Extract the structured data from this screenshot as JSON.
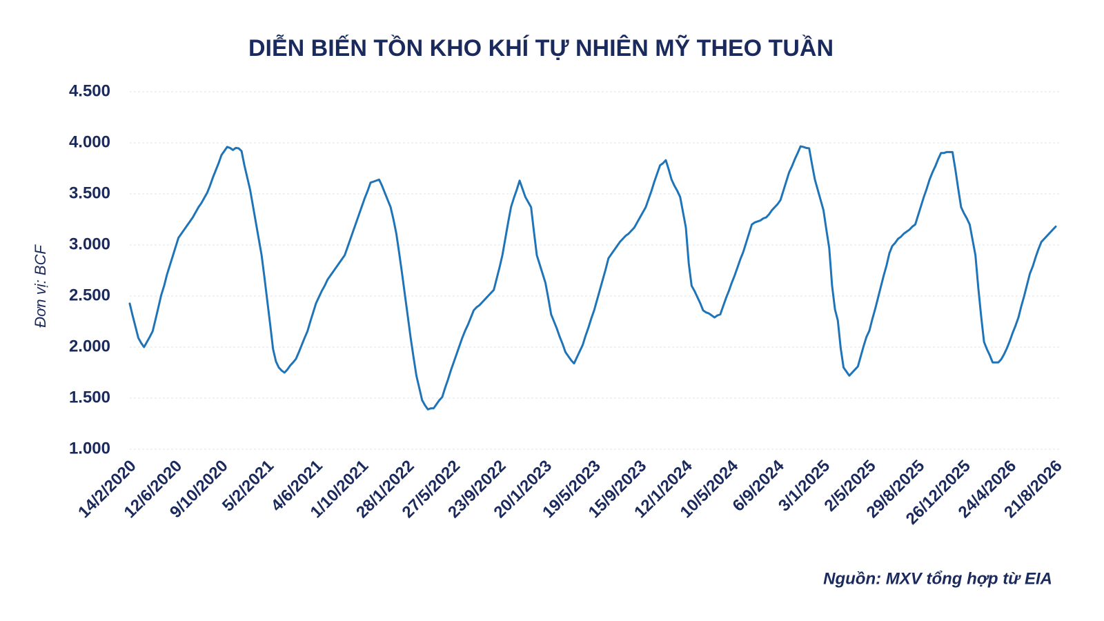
{
  "chart_data": {
    "type": "line",
    "title": "DIỄN BIẾN TỒN KHO KHÍ TỰ NHIÊN MỸ THEO TUẦN",
    "y_label": "Đơn vị: BCF",
    "source": "Nguồn: MXV tổng hợp từ EIA",
    "color": "#1f74b8",
    "grid": true,
    "ylim": [
      1000,
      4500
    ],
    "yticks": [
      {
        "value": 1000,
        "label": "1.000"
      },
      {
        "value": 1500,
        "label": "1.500"
      },
      {
        "value": 2000,
        "label": "2.000"
      },
      {
        "value": 2500,
        "label": "2.500"
      },
      {
        "value": 3000,
        "label": "3.000"
      },
      {
        "value": 3500,
        "label": "3.500"
      },
      {
        "value": 4000,
        "label": "4.000"
      },
      {
        "value": 4500,
        "label": "4.500"
      }
    ],
    "categories": [
      "14/2/2020",
      null,
      null,
      null,
      null,
      null,
      null,
      null,
      null,
      null,
      null,
      null,
      null,
      null,
      null,
      null,
      "12/6/2020",
      null,
      null,
      null,
      null,
      null,
      null,
      null,
      null,
      null,
      null,
      null,
      null,
      null,
      null,
      null,
      "9/10/2020",
      null,
      null,
      null,
      null,
      null,
      null,
      null,
      null,
      null,
      null,
      null,
      null,
      null,
      null,
      null,
      "5/2/2021",
      null,
      null,
      null,
      null,
      null,
      null,
      null,
      null,
      null,
      null,
      null,
      null,
      null,
      null,
      null,
      null,
      "4/6/2021",
      null,
      null,
      null,
      null,
      null,
      null,
      null,
      null,
      null,
      null,
      null,
      null,
      null,
      null,
      null,
      "1/10/2021",
      null,
      null,
      null,
      null,
      null,
      null,
      null,
      null,
      null,
      null,
      null,
      null,
      null,
      null,
      null,
      "28/1/2022",
      null,
      null,
      null,
      null,
      null,
      null,
      null,
      null,
      null,
      null,
      null,
      null,
      null,
      null,
      null,
      "27/5/2022",
      null,
      null,
      null,
      null,
      null,
      null,
      null,
      null,
      null,
      null,
      null,
      null,
      null,
      null,
      null,
      "23/9/2022",
      null,
      null,
      null,
      null,
      null,
      null,
      null,
      null,
      null,
      null,
      null,
      null,
      null,
      null,
      null,
      "20/1/2023",
      null,
      null,
      null,
      null,
      null,
      null,
      null,
      null,
      null,
      null,
      null,
      null,
      null,
      null,
      null,
      null,
      "19/5/2023",
      null,
      null,
      null,
      null,
      null,
      null,
      null,
      null,
      null,
      null,
      null,
      null,
      null,
      null,
      null,
      "15/9/2023",
      null,
      null,
      null,
      null,
      null,
      null,
      null,
      null,
      null,
      null,
      null,
      null,
      null,
      null,
      null,
      "12/1/2024",
      null,
      null,
      null,
      null,
      null,
      null,
      null,
      null,
      null,
      null,
      null,
      null,
      null,
      null,
      null,
      "10/5/2024",
      null,
      null,
      null,
      null,
      null,
      null,
      null,
      null,
      null,
      null,
      null,
      null,
      null,
      null,
      null,
      "6/9/2024",
      null,
      null,
      null,
      null,
      null,
      null,
      null,
      null,
      null,
      null,
      null,
      null,
      null,
      null,
      null,
      "3/1/2025",
      null,
      null,
      null,
      null,
      null,
      null,
      null,
      null,
      null,
      null,
      null,
      null,
      null,
      null,
      null,
      "2/5/2025",
      null,
      null,
      null,
      null,
      null,
      null,
      null,
      null,
      null,
      null,
      null,
      null,
      null,
      null,
      null,
      null,
      "29/8/2025",
      null,
      null,
      null,
      null,
      null,
      null,
      null,
      null,
      null,
      null,
      null,
      null,
      null,
      null,
      null,
      "26/12/2025",
      null,
      null,
      null,
      null,
      null,
      null,
      null,
      null,
      null,
      null,
      null,
      null,
      null,
      null,
      null,
      "24/4/2026",
      null,
      null,
      null,
      null,
      null,
      null,
      null,
      null,
      null,
      null,
      null,
      null,
      null,
      null,
      null,
      "21/8/2026"
    ],
    "values": [
      2426,
      2310,
      2200,
      2090,
      2040,
      2000,
      2050,
      2100,
      2155,
      2270,
      2390,
      2510,
      2600,
      2710,
      2800,
      2890,
      2980,
      3070,
      3110,
      3150,
      3190,
      3230,
      3270,
      3320,
      3370,
      3410,
      3460,
      3510,
      3580,
      3660,
      3730,
      3800,
      3880,
      3920,
      3960,
      3950,
      3930,
      3950,
      3946,
      3920,
      3780,
      3660,
      3540,
      3380,
      3220,
      3060,
      2900,
      2680,
      2450,
      2220,
      1980,
      1860,
      1800,
      1770,
      1750,
      1780,
      1820,
      1850,
      1885,
      1950,
      2020,
      2090,
      2155,
      2250,
      2340,
      2430,
      2490,
      2550,
      2600,
      2660,
      2700,
      2740,
      2780,
      2820,
      2860,
      2900,
      2980,
      3060,
      3140,
      3220,
      3300,
      3380,
      3460,
      3530,
      3610,
      3620,
      3630,
      3640,
      3580,
      3510,
      3440,
      3370,
      3250,
      3110,
      2920,
      2720,
      2510,
      2300,
      2090,
      1900,
      1720,
      1600,
      1480,
      1430,
      1390,
      1400,
      1400,
      1440,
      1480,
      1510,
      1600,
      1680,
      1770,
      1850,
      1930,
      2010,
      2090,
      2160,
      2220,
      2290,
      2360,
      2390,
      2410,
      2440,
      2470,
      2500,
      2530,
      2560,
      2670,
      2780,
      2900,
      3060,
      3220,
      3370,
      3460,
      3540,
      3630,
      3550,
      3470,
      3420,
      3370,
      3130,
      2900,
      2810,
      2720,
      2630,
      2480,
      2320,
      2250,
      2180,
      2100,
      2030,
      1950,
      1910,
      1870,
      1840,
      1900,
      1960,
      2020,
      2110,
      2190,
      2280,
      2360,
      2460,
      2560,
      2660,
      2760,
      2870,
      2910,
      2950,
      2990,
      3030,
      3060,
      3090,
      3110,
      3140,
      3170,
      3220,
      3270,
      3320,
      3370,
      3450,
      3530,
      3620,
      3700,
      3780,
      3800,
      3830,
      3740,
      3640,
      3580,
      3530,
      3470,
      3320,
      3170,
      2820,
      2600,
      2550,
      2490,
      2430,
      2360,
      2340,
      2330,
      2310,
      2290,
      2310,
      2320,
      2400,
      2480,
      2550,
      2630,
      2700,
      2780,
      2860,
      2930,
      3020,
      3110,
      3200,
      3220,
      3230,
      3240,
      3260,
      3270,
      3300,
      3340,
      3370,
      3400,
      3440,
      3530,
      3620,
      3710,
      3770,
      3840,
      3900,
      3966,
      3960,
      3950,
      3946,
      3790,
      3640,
      3540,
      3440,
      3340,
      3150,
      2970,
      2600,
      2370,
      2260,
      1990,
      1800,
      1760,
      1720,
      1750,
      1780,
      1810,
      1910,
      2010,
      2100,
      2160,
      2270,
      2370,
      2480,
      2590,
      2700,
      2800,
      2920,
      2990,
      3020,
      3060,
      3080,
      3110,
      3130,
      3150,
      3180,
      3200,
      3290,
      3380,
      3470,
      3550,
      3640,
      3710,
      3770,
      3840,
      3900,
      3900,
      3910,
      3910,
      3910,
      3740,
      3550,
      3370,
      3310,
      3260,
      3200,
      3050,
      2900,
      2580,
      2300,
      2050,
      1980,
      1920,
      1850,
      1850,
      1850,
      1880,
      1930,
      1990,
      2060,
      2140,
      2210,
      2290,
      2400,
      2500,
      2610,
      2720,
      2790,
      2880,
      2960,
      3030,
      3060,
      3090,
      3120,
      3150,
      3180
    ]
  }
}
